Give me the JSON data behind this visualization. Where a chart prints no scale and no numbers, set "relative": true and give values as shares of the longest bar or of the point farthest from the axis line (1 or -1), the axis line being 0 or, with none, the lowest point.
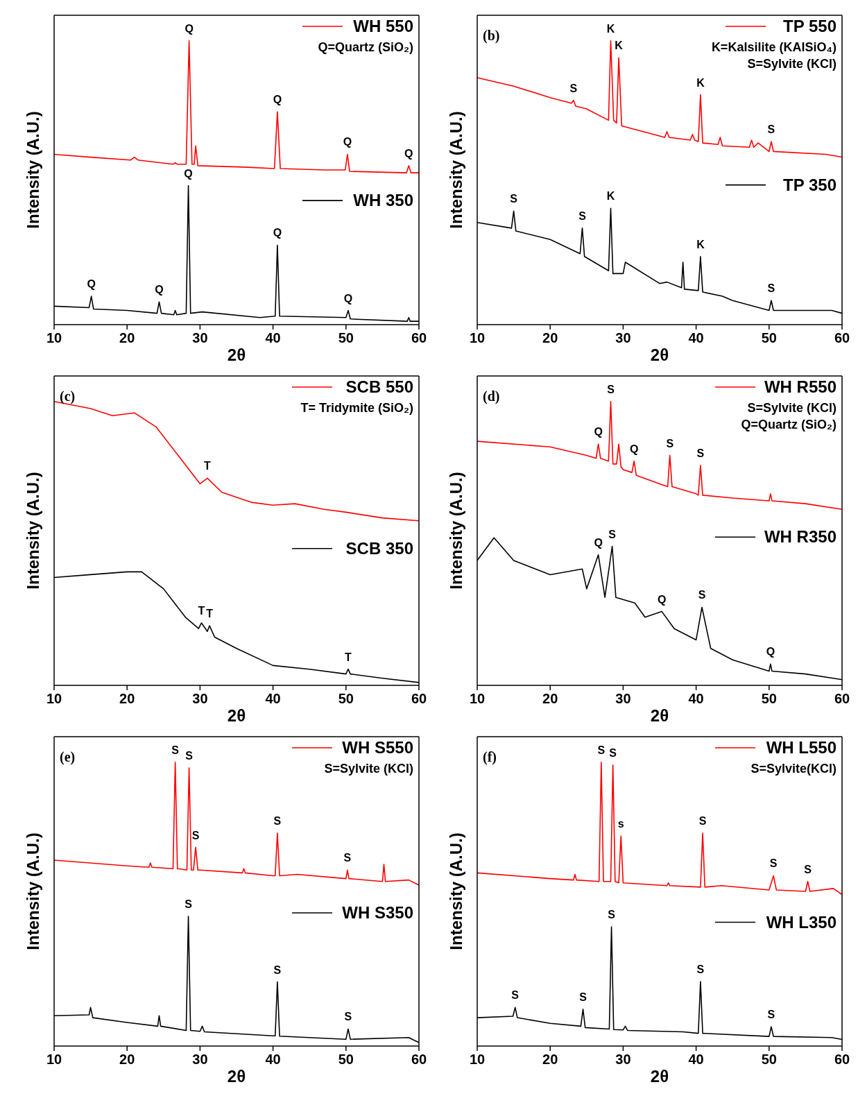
{
  "chart_data": [
    {
      "type": "line",
      "relative": true,
      "xlabel": "2θ",
      "ylabel": "Intensity (A.U.)",
      "xlim": [
        10,
        60
      ],
      "xticks": [
        10,
        20,
        30,
        40,
        50,
        60
      ],
      "legend": "top right",
      "annotations": [
        "Q=Quartz (SiO₂)",
        {
          "text": "Q",
          "x": 28.5,
          "y": 1.0
        },
        {
          "text": "Q",
          "x": 40.6,
          "y": 0.75
        },
        {
          "text": "Q",
          "x": 50.2,
          "y": 0.6
        },
        {
          "text": "Q",
          "x": 58.6,
          "y": 0.56
        },
        {
          "text": "Q",
          "x": 15.1,
          "y": 0.1
        },
        {
          "text": "Q",
          "x": 24.4,
          "y": 0.08
        },
        {
          "text": "Q",
          "x": 28.4,
          "y": 0.49
        },
        {
          "text": "Q",
          "x": 40.6,
          "y": 0.28
        },
        {
          "text": "Q",
          "x": 50.3,
          "y": 0.05
        }
      ],
      "series": [
        {
          "name": "WH 550",
          "color": "#ff0000",
          "x": [
            10,
            15,
            20.5,
            21,
            21.5,
            26.3,
            26.6,
            26.9,
            28.1,
            28.5,
            28.9,
            29.2,
            29.4,
            29.7,
            36,
            40.2,
            40.6,
            41,
            47,
            49.9,
            50.2,
            50.5,
            58.3,
            58.6,
            58.9,
            60
          ],
          "values": [
            0.6,
            0.59,
            0.58,
            0.59,
            0.58,
            0.565,
            0.57,
            0.565,
            0.565,
            1.0,
            0.565,
            0.565,
            0.63,
            0.56,
            0.555,
            0.55,
            0.75,
            0.55,
            0.545,
            0.545,
            0.6,
            0.54,
            0.535,
            0.56,
            0.535,
            0.535
          ]
        },
        {
          "name": "WH 350",
          "color": "#000000",
          "x": [
            10,
            14.8,
            15.1,
            15.4,
            20,
            24.1,
            24.4,
            24.7,
            26.4,
            26.6,
            26.8,
            28.1,
            28.4,
            28.7,
            30.3,
            38.2,
            40.3,
            40.6,
            40.9,
            50,
            50.3,
            50.6,
            58.4,
            58.6,
            58.8,
            60
          ],
          "values": [
            0.065,
            0.06,
            0.1,
            0.055,
            0.05,
            0.04,
            0.08,
            0.04,
            0.035,
            0.05,
            0.035,
            0.04,
            0.49,
            0.04,
            0.045,
            0.025,
            0.03,
            0.28,
            0.03,
            0.025,
            0.05,
            0.02,
            0.012,
            0.025,
            0.012,
            0.012
          ]
        }
      ]
    },
    {
      "type": "line",
      "relative": true,
      "title": "(b)",
      "xlabel": "2θ",
      "ylabel": "Intensity (A.U.)",
      "xlim": [
        10,
        60
      ],
      "xticks": [
        10,
        20,
        30,
        40,
        50,
        60
      ],
      "legend": "top right",
      "annotations": [
        "K=Kalsilite (KAlSiO₄)",
        "S=Sylvite (KCl)",
        {
          "text": "S",
          "x": 23.2,
          "y": 0.79
        },
        {
          "text": "K",
          "x": 28.3,
          "y": 1.0
        },
        {
          "text": "K",
          "x": 29.4,
          "y": 0.94
        },
        {
          "text": "K",
          "x": 40.6,
          "y": 0.81
        },
        {
          "text": "S",
          "x": 50.3,
          "y": 0.645
        },
        {
          "text": "S",
          "x": 15,
          "y": 0.4
        },
        {
          "text": "S",
          "x": 24.4,
          "y": 0.34
        },
        {
          "text": "K",
          "x": 28.3,
          "y": 0.41
        },
        {
          "text": "K",
          "x": 40.6,
          "y": 0.24
        },
        {
          "text": "S",
          "x": 50.3,
          "y": 0.085
        }
      ],
      "series": [
        {
          "name": "TP 550",
          "color": "#ff0000",
          "x": [
            10,
            15,
            20,
            22.9,
            23.2,
            23.5,
            25,
            28,
            28.3,
            28.7,
            29.1,
            29.4,
            29.8,
            35.7,
            36,
            36.3,
            39.2,
            39.5,
            39.8,
            40.3,
            40.6,
            40.9,
            43,
            43.3,
            43.6,
            47.3,
            47.6,
            47.9,
            48.5,
            50,
            50.3,
            50.6,
            57.8,
            60
          ],
          "values": [
            0.87,
            0.84,
            0.8,
            0.78,
            0.79,
            0.77,
            0.76,
            0.72,
            1.0,
            0.72,
            0.71,
            0.94,
            0.7,
            0.66,
            0.68,
            0.66,
            0.65,
            0.67,
            0.65,
            0.645,
            0.81,
            0.64,
            0.635,
            0.66,
            0.63,
            0.625,
            0.65,
            0.625,
            0.64,
            0.61,
            0.645,
            0.61,
            0.6,
            0.59
          ]
        },
        {
          "name": "TP 350",
          "color": "#000000",
          "x": [
            10,
            14.7,
            15,
            15.3,
            20,
            24.1,
            24.4,
            24.7,
            28,
            28.3,
            28.6,
            30,
            30.3,
            35,
            36,
            38,
            38.2,
            38.4,
            40.3,
            40.6,
            40.9,
            43.6,
            45,
            50,
            50.3,
            50.6,
            58.6,
            60
          ],
          "values": [
            0.36,
            0.34,
            0.4,
            0.33,
            0.3,
            0.25,
            0.34,
            0.24,
            0.19,
            0.41,
            0.18,
            0.18,
            0.22,
            0.145,
            0.15,
            0.13,
            0.22,
            0.125,
            0.12,
            0.24,
            0.115,
            0.1,
            0.085,
            0.05,
            0.085,
            0.05,
            0.05,
            0.04
          ]
        }
      ]
    },
    {
      "type": "line",
      "relative": true,
      "title": "(c)",
      "xlabel": "2θ",
      "ylabel": "Intensity (A.U.)",
      "xlim": [
        10,
        60
      ],
      "xticks": [
        10,
        20,
        30,
        40,
        50,
        60
      ],
      "legend": "top right",
      "annotations": [
        "T= Tridymite (SiO₂)",
        {
          "text": "T",
          "x": 31,
          "y": 0.73
        },
        {
          "text": "T",
          "x": 30.2,
          "y": 0.22
        },
        {
          "text": "T",
          "x": 31.3,
          "y": 0.21
        },
        {
          "text": "T",
          "x": 50.3,
          "y": 0.057
        }
      ],
      "series": [
        {
          "name": "SCB 550",
          "color": "#ff0000",
          "x": [
            10,
            15,
            18,
            21,
            24,
            27,
            30,
            31,
            33,
            37,
            40,
            43,
            47,
            50,
            55,
            60
          ],
          "values": [
            1.0,
            0.975,
            0.95,
            0.96,
            0.91,
            0.81,
            0.71,
            0.73,
            0.68,
            0.645,
            0.635,
            0.64,
            0.62,
            0.61,
            0.59,
            0.58
          ]
        },
        {
          "name": "SCB 350",
          "color": "#000000",
          "x": [
            10,
            15,
            20,
            22,
            25,
            28,
            29.8,
            30.2,
            31,
            31.3,
            32,
            35,
            40,
            45,
            50,
            50.3,
            50.6,
            55,
            60
          ],
          "values": [
            0.38,
            0.39,
            0.4,
            0.4,
            0.34,
            0.24,
            0.2,
            0.22,
            0.19,
            0.21,
            0.17,
            0.13,
            0.07,
            0.057,
            0.04,
            0.057,
            0.04,
            0.025,
            0.01
          ]
        }
      ]
    },
    {
      "type": "line",
      "relative": true,
      "title": "(d)",
      "xlabel": "2θ",
      "ylabel": "Intensity (A.U.)",
      "xlim": [
        10,
        60
      ],
      "xticks": [
        10,
        20,
        30,
        40,
        50,
        60
      ],
      "legend": "top right",
      "annotations": [
        "S=Sylvite (KCl)",
        "Q=Quartz (SiO₂)",
        {
          "text": "Q",
          "x": 26.6,
          "y": 0.85
        },
        {
          "text": "S",
          "x": 28.3,
          "y": 1.0
        },
        {
          "text": "Q",
          "x": 31.5,
          "y": 0.79
        },
        {
          "text": "S",
          "x": 36.4,
          "y": 0.81
        },
        {
          "text": "S",
          "x": 40.6,
          "y": 0.775
        },
        {
          "text": "Q",
          "x": 26.6,
          "y": 0.46
        },
        {
          "text": "S",
          "x": 28.5,
          "y": 0.49
        },
        {
          "text": "Q",
          "x": 35.3,
          "y": 0.26
        },
        {
          "text": "S",
          "x": 40.8,
          "y": 0.275
        },
        {
          "text": "Q",
          "x": 50.2,
          "y": 0.075
        }
      ],
      "series": [
        {
          "name": "WH R550",
          "color": "#ff0000",
          "x": [
            10,
            20,
            25,
            26.3,
            26.6,
            26.9,
            28,
            28.3,
            28.6,
            29.1,
            29.4,
            29.7,
            30,
            31.2,
            31.5,
            31.8,
            35,
            36.1,
            36.4,
            36.7,
            40,
            40.3,
            40.6,
            40.9,
            45,
            50,
            50.2,
            50.4,
            55,
            60
          ],
          "values": [
            0.86,
            0.84,
            0.81,
            0.8,
            0.85,
            0.8,
            0.79,
            1.0,
            0.78,
            0.78,
            0.85,
            0.77,
            0.76,
            0.75,
            0.79,
            0.74,
            0.71,
            0.7,
            0.81,
            0.7,
            0.675,
            0.67,
            0.775,
            0.67,
            0.66,
            0.65,
            0.675,
            0.65,
            0.64,
            0.62
          ]
        },
        {
          "name": "WH R350",
          "color": "#000000",
          "x": [
            10,
            12.3,
            15,
            20,
            24.4,
            25,
            26.6,
            27.5,
            28.5,
            29,
            31.6,
            33,
            35.3,
            37,
            40,
            40.8,
            42,
            45,
            50,
            50.2,
            50.4,
            55,
            60
          ],
          "values": [
            0.44,
            0.52,
            0.44,
            0.39,
            0.41,
            0.34,
            0.46,
            0.31,
            0.49,
            0.31,
            0.29,
            0.24,
            0.26,
            0.2,
            0.16,
            0.275,
            0.13,
            0.09,
            0.05,
            0.075,
            0.05,
            0.04,
            0.02
          ]
        }
      ]
    },
    {
      "type": "line",
      "relative": true,
      "title": "(e)",
      "xlabel": "2θ",
      "ylabel": "Intensity (A.U.)",
      "xlim": [
        10,
        60
      ],
      "xticks": [
        10,
        20,
        30,
        40,
        50,
        60
      ],
      "legend": "top right",
      "annotations": [
        "S=Sylvite (KCl)",
        {
          "text": "S",
          "x": 26.6,
          "y": 1.0
        },
        {
          "text": "S",
          "x": 28.5,
          "y": 0.98
        },
        {
          "text": "S",
          "x": 29.4,
          "y": 0.7
        },
        {
          "text": "S",
          "x": 40.6,
          "y": 0.75
        },
        {
          "text": "S",
          "x": 50.2,
          "y": 0.62
        },
        {
          "text": "S",
          "x": 28.4,
          "y": 0.457
        },
        {
          "text": "S",
          "x": 40.6,
          "y": 0.226
        },
        {
          "text": "S",
          "x": 50.3,
          "y": 0.06
        }
      ],
      "series": [
        {
          "name": "WH S550",
          "color": "#ff0000",
          "x": [
            10,
            20,
            23,
            23.2,
            23.4,
            26.3,
            26.6,
            26.9,
            28.2,
            28.5,
            28.8,
            29.1,
            29.4,
            29.7,
            30,
            35.8,
            36,
            36.2,
            40,
            40.3,
            40.6,
            40.9,
            43.3,
            50,
            50.2,
            50.4,
            55,
            55.2,
            55.4,
            58.6,
            60
          ],
          "values": [
            0.655,
            0.635,
            0.63,
            0.645,
            0.63,
            0.625,
            1.0,
            0.625,
            0.62,
            0.98,
            0.62,
            0.62,
            0.7,
            0.62,
            0.62,
            0.61,
            0.625,
            0.61,
            0.6,
            0.6,
            0.75,
            0.6,
            0.605,
            0.59,
            0.62,
            0.59,
            0.58,
            0.64,
            0.58,
            0.585,
            0.567
          ]
        },
        {
          "name": "WH S350",
          "color": "#000000",
          "x": [
            10,
            14.8,
            15,
            15.3,
            20,
            24.2,
            24.4,
            24.6,
            28.1,
            28.4,
            28.7,
            30,
            30.3,
            30.6,
            40,
            40.3,
            40.6,
            40.9,
            50,
            50.3,
            50.6,
            58.6,
            60
          ],
          "values": [
            0.107,
            0.11,
            0.136,
            0.1,
            0.083,
            0.07,
            0.107,
            0.07,
            0.055,
            0.457,
            0.055,
            0.052,
            0.07,
            0.05,
            0.036,
            0.036,
            0.226,
            0.035,
            0.024,
            0.06,
            0.024,
            0.03,
            0.012
          ]
        }
      ]
    },
    {
      "type": "line",
      "relative": true,
      "title": "(f)",
      "xlabel": "2θ",
      "ylabel": "Intensity (A.U.)",
      "xlim": [
        10,
        60
      ],
      "xticks": [
        10,
        20,
        30,
        40,
        50,
        60
      ],
      "legend": "top right",
      "annotations": [
        "S=Sylvite(KCl)",
        {
          "text": "S",
          "x": 27.0,
          "y": 1.0
        },
        {
          "text": "S",
          "x": 28.6,
          "y": 0.99
        },
        {
          "text": "s",
          "x": 29.7,
          "y": 0.74
        },
        {
          "text": "S",
          "x": 40.9,
          "y": 0.75
        },
        {
          "text": "S",
          "x": 50.6,
          "y": 0.6
        },
        {
          "text": "S",
          "x": 55.3,
          "y": 0.58
        },
        {
          "text": "S",
          "x": 15.2,
          "y": 0.136
        },
        {
          "text": "S",
          "x": 24.5,
          "y": 0.13
        },
        {
          "text": "S",
          "x": 28.4,
          "y": 0.42
        },
        {
          "text": "S",
          "x": 40.6,
          "y": 0.227
        },
        {
          "text": "S",
          "x": 50.3,
          "y": 0.068
        }
      ],
      "series": [
        {
          "name": "WH L550",
          "color": "#ff0000",
          "x": [
            10,
            20,
            23.2,
            23.4,
            23.6,
            26.7,
            27,
            27.3,
            28.3,
            28.6,
            28.9,
            29.4,
            29.7,
            30,
            36,
            36.2,
            36.4,
            40.6,
            40.9,
            41.2,
            43.5,
            50,
            50.6,
            51,
            55,
            55.3,
            55.6,
            58.8,
            60
          ],
          "values": [
            0.61,
            0.59,
            0.585,
            0.605,
            0.585,
            0.58,
            1.0,
            0.58,
            0.58,
            0.99,
            0.58,
            0.575,
            0.74,
            0.575,
            0.565,
            0.575,
            0.565,
            0.56,
            0.75,
            0.56,
            0.565,
            0.55,
            0.6,
            0.55,
            0.545,
            0.58,
            0.545,
            0.555,
            0.534
          ]
        },
        {
          "name": "WH L350",
          "color": "#000000",
          "x": [
            10,
            14.9,
            15.2,
            15.5,
            20,
            24.2,
            24.5,
            24.8,
            28.1,
            28.4,
            28.7,
            30,
            30.3,
            30.6,
            38.2,
            40.3,
            40.6,
            40.9,
            50,
            50.3,
            50.6,
            58.6,
            60
          ],
          "values": [
            0.1,
            0.105,
            0.136,
            0.1,
            0.08,
            0.07,
            0.13,
            0.065,
            0.06,
            0.42,
            0.058,
            0.057,
            0.07,
            0.055,
            0.05,
            0.045,
            0.227,
            0.045,
            0.034,
            0.068,
            0.034,
            0.03,
            0.023
          ]
        }
      ]
    }
  ]
}
